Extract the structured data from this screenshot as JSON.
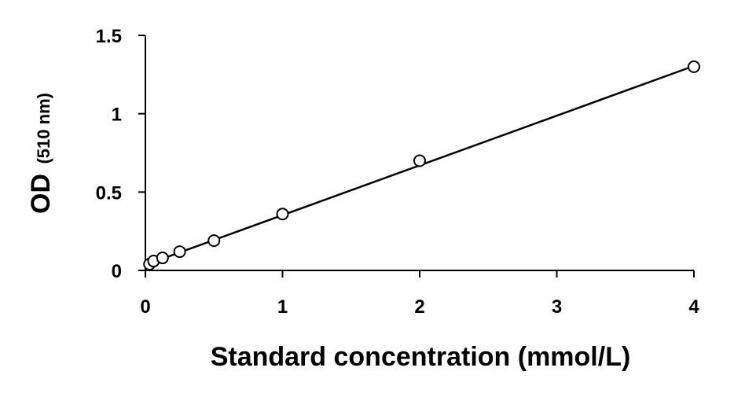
{
  "chart_data": {
    "type": "scatter",
    "title": "",
    "xlabel": "Standard concentration (mmol/L)",
    "ylabel_main": "OD",
    "ylabel_unit": "(510 nm)",
    "xlim": [
      0,
      4
    ],
    "ylim": [
      0,
      1.5
    ],
    "x_ticks": [
      0,
      1,
      2,
      3,
      4
    ],
    "x_tick_labels": [
      "0",
      "1",
      "2",
      "3",
      "4"
    ],
    "y_ticks": [
      0,
      0.5,
      1,
      1.5
    ],
    "y_tick_labels": [
      "0",
      "0.5",
      "1",
      "1.5"
    ],
    "grid": false,
    "legend": "none",
    "series": [
      {
        "marker": "open-circle",
        "points": [
          {
            "x": 0.03,
            "y": 0.04
          },
          {
            "x": 0.06,
            "y": 0.06
          },
          {
            "x": 0.125,
            "y": 0.08
          },
          {
            "x": 0.25,
            "y": 0.12
          },
          {
            "x": 0.5,
            "y": 0.19
          },
          {
            "x": 1,
            "y": 0.36
          },
          {
            "x": 2,
            "y": 0.7
          },
          {
            "x": 4,
            "y": 1.3
          }
        ]
      }
    ],
    "trendline": {
      "type": "linear",
      "from": {
        "x": 0.03,
        "y": 0.045
      },
      "to": {
        "x": 4,
        "y": 1.305
      }
    },
    "colors": {
      "axis": "#000000",
      "marker_stroke": "#000000",
      "marker_fill": "#ffffff",
      "line": "#000000"
    }
  }
}
